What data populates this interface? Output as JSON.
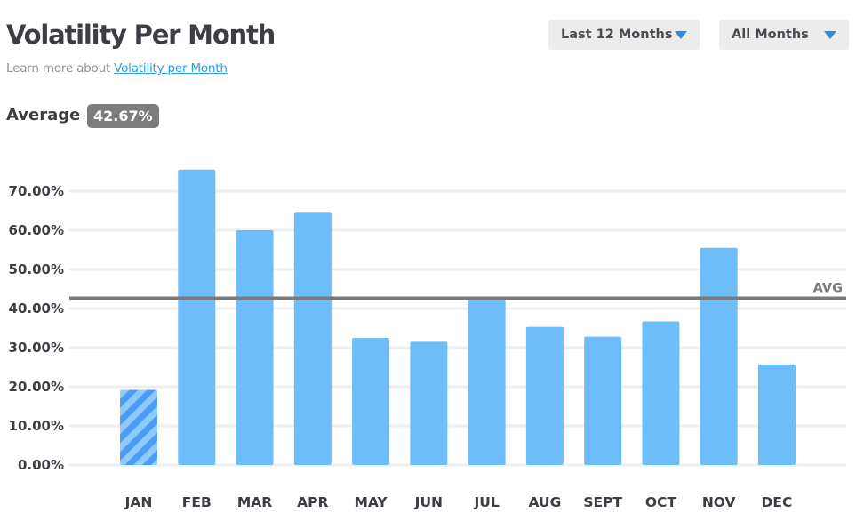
{
  "header": {
    "title": "Volatility Per Month",
    "subtitle_prefix": "Learn more about ",
    "subtitle_link": "Volatility per Month"
  },
  "filters": {
    "range": {
      "selected": "Last 12 Months"
    },
    "months": {
      "selected": "All Months"
    }
  },
  "summary": {
    "average_label": "Average",
    "average_value": "42.67%"
  },
  "colors": {
    "bar": "#6dbdfb",
    "bar_highlight": "#4a9cf6",
    "bar_stripe": "#8fcafd",
    "avg_line": "#7a7a7a",
    "grid": "#eeeeee",
    "caret": "#2e8be0"
  },
  "chart_data": {
    "type": "bar",
    "categories": [
      "JAN",
      "FEB",
      "MAR",
      "APR",
      "MAY",
      "JUN",
      "JUL",
      "AUG",
      "SEPT",
      "OCT",
      "NOV",
      "DEC"
    ],
    "values": [
      19.2,
      75.5,
      60.0,
      64.5,
      32.5,
      31.5,
      42.5,
      35.3,
      32.8,
      36.7,
      55.5,
      25.7
    ],
    "highlighted_index": 0,
    "average": 42.67,
    "average_label": "AVG",
    "yticks": [
      "0.00%",
      "10.00%",
      "20.00%",
      "30.00%",
      "40.00%",
      "50.00%",
      "60.00%",
      "70.00%"
    ],
    "ylim": [
      0,
      80
    ],
    "grid": true,
    "title": "Volatility Per Month",
    "xlabel": "",
    "ylabel": ""
  }
}
